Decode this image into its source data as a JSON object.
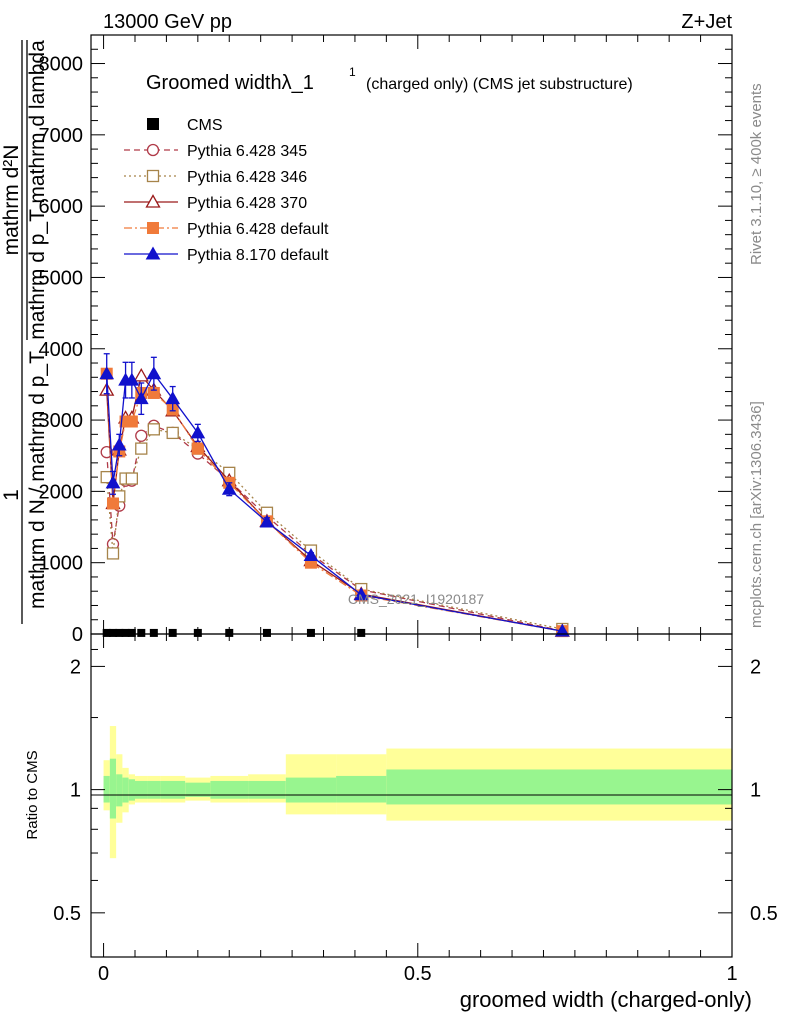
{
  "header": {
    "left": "13000 GeV pp",
    "right": "Z+Jet"
  },
  "side_labels": {
    "rivet": "Rivet 3.1.10, ≥ 400k events",
    "mcplots": "mcplots.cern.ch [arXiv:1306.3436]"
  },
  "watermark": "CMS_2021_I1920187",
  "chart_data": [
    {
      "type": "line",
      "title": "Groomed widthλ_1",
      "title_sup": "1",
      "title_suffix": "(charged only) (CMS jet substructure)",
      "xlabel": "groomed width (charged-only)",
      "ylabel_num": "mathrm d²N",
      "ylabel_den": "mathrm d p_T mathrm d lambda",
      "ylabel_one": "1",
      "ylabel_norm": "mathrm d N / mathrm d p_T",
      "xlim": [
        -0.02,
        1.0
      ],
      "ylim": [
        0,
        8400
      ],
      "x_ticks": [
        0,
        0.5,
        1
      ],
      "x_tick_labels": [
        "0",
        "0.5",
        "1"
      ],
      "y_ticks": [
        0,
        1000,
        2000,
        3000,
        4000,
        5000,
        6000,
        7000,
        8000
      ],
      "y_tick_labels": [
        "0",
        "1000",
        "2000",
        "3000",
        "4000",
        "5000",
        "6000",
        "7000",
        "8000"
      ],
      "legend_position": "top-left",
      "series": [
        {
          "name": "CMS",
          "color": "#000000",
          "marker": "square-filled",
          "x": [
            0.005,
            0.015,
            0.025,
            0.035,
            0.045,
            0.06,
            0.08,
            0.11,
            0.15,
            0.2,
            0.26,
            0.33,
            0.41,
            0.73
          ],
          "values": [
            15,
            15,
            15,
            15,
            15,
            15,
            15,
            15,
            15,
            15,
            15,
            15,
            15,
            15
          ]
        },
        {
          "name": "Pythia 6.428 345",
          "color": "#b03a48",
          "dash": "6,4",
          "marker": "circle-open",
          "x": [
            0.005,
            0.015,
            0.025,
            0.035,
            0.045,
            0.06,
            0.08,
            0.11,
            0.15,
            0.2,
            0.26,
            0.33,
            0.41,
            0.73
          ],
          "values": [
            2550,
            1260,
            1800,
            2150,
            2150,
            2780,
            2920,
            2820,
            2530,
            2150,
            1650,
            1120,
            620,
            45
          ]
        },
        {
          "name": "Pythia 6.428 346",
          "color": "#a6844a",
          "dash": "2,3",
          "marker": "square-open",
          "x": [
            0.005,
            0.015,
            0.025,
            0.035,
            0.045,
            0.06,
            0.08,
            0.11,
            0.15,
            0.2,
            0.26,
            0.33,
            0.41,
            0.73
          ],
          "values": [
            2200,
            1130,
            1930,
            2180,
            2180,
            2600,
            2870,
            2820,
            2600,
            2260,
            1700,
            1170,
            630,
            70
          ]
        },
        {
          "name": "Pythia 6.428 370",
          "color": "#9b1b1b",
          "dash": "",
          "marker": "triangle-open",
          "x": [
            0.005,
            0.015,
            0.025,
            0.035,
            0.045,
            0.06,
            0.08,
            0.11,
            0.15,
            0.2,
            0.26,
            0.33,
            0.41,
            0.73
          ],
          "values": [
            3420,
            1830,
            2580,
            3030,
            3030,
            3620,
            3420,
            3130,
            2630,
            2150,
            1580,
            1030,
            560,
            40
          ]
        },
        {
          "name": "Pythia 6.428 default",
          "color": "#f07a3a",
          "dash": "8,3,2,3",
          "marker": "square-filled",
          "x": [
            0.005,
            0.015,
            0.025,
            0.035,
            0.045,
            0.06,
            0.08,
            0.11,
            0.15,
            0.2,
            0.26,
            0.33,
            0.41,
            0.73
          ],
          "values": [
            3650,
            1830,
            2560,
            2980,
            2980,
            3380,
            3380,
            3150,
            2600,
            2120,
            1580,
            1000,
            540,
            40
          ]
        },
        {
          "name": "Pythia 8.170 default",
          "color": "#1111cc",
          "dash": "",
          "marker": "triangle-filled",
          "x": [
            0.005,
            0.015,
            0.025,
            0.035,
            0.045,
            0.06,
            0.08,
            0.11,
            0.15,
            0.2,
            0.26,
            0.33,
            0.41,
            0.73
          ],
          "values": [
            3650,
            2120,
            2650,
            3560,
            3560,
            3300,
            3650,
            3300,
            2820,
            2030,
            1570,
            1100,
            550,
            40
          ],
          "errors": [
            280,
            160,
            150,
            250,
            250,
            220,
            230,
            170,
            120,
            90,
            60,
            40,
            25,
            5
          ]
        }
      ]
    },
    {
      "type": "area",
      "ylabel": "Ratio to CMS",
      "xlim": [
        -0.02,
        1.0
      ],
      "ylim": [
        0.39,
        2.4
      ],
      "y_ticks": [
        0.5,
        1,
        2
      ],
      "y_tick_labels": [
        "0.5",
        "1",
        "2"
      ],
      "bin_edges": [
        0.0,
        0.01,
        0.02,
        0.03,
        0.04,
        0.05,
        0.07,
        0.09,
        0.13,
        0.17,
        0.23,
        0.29,
        0.37,
        0.45,
        1.0
      ],
      "green_band": [
        [
          0.93,
          1.08
        ],
        [
          0.85,
          1.19
        ],
        [
          0.91,
          1.09
        ],
        [
          0.93,
          1.07
        ],
        [
          0.94,
          1.06
        ],
        [
          0.95,
          1.05
        ],
        [
          0.95,
          1.05
        ],
        [
          0.95,
          1.05
        ],
        [
          0.96,
          1.04
        ],
        [
          0.95,
          1.05
        ],
        [
          0.95,
          1.05
        ],
        [
          0.93,
          1.07
        ],
        [
          0.93,
          1.08
        ],
        [
          0.92,
          1.12
        ]
      ],
      "yellow_band": [
        [
          0.89,
          1.18
        ],
        [
          0.68,
          1.43
        ],
        [
          0.83,
          1.22
        ],
        [
          0.88,
          1.13
        ],
        [
          0.92,
          1.09
        ],
        [
          0.93,
          1.08
        ],
        [
          0.93,
          1.08
        ],
        [
          0.93,
          1.08
        ],
        [
          0.94,
          1.07
        ],
        [
          0.93,
          1.08
        ],
        [
          0.93,
          1.09
        ],
        [
          0.87,
          1.22
        ],
        [
          0.87,
          1.22
        ],
        [
          0.84,
          1.26
        ]
      ]
    }
  ]
}
